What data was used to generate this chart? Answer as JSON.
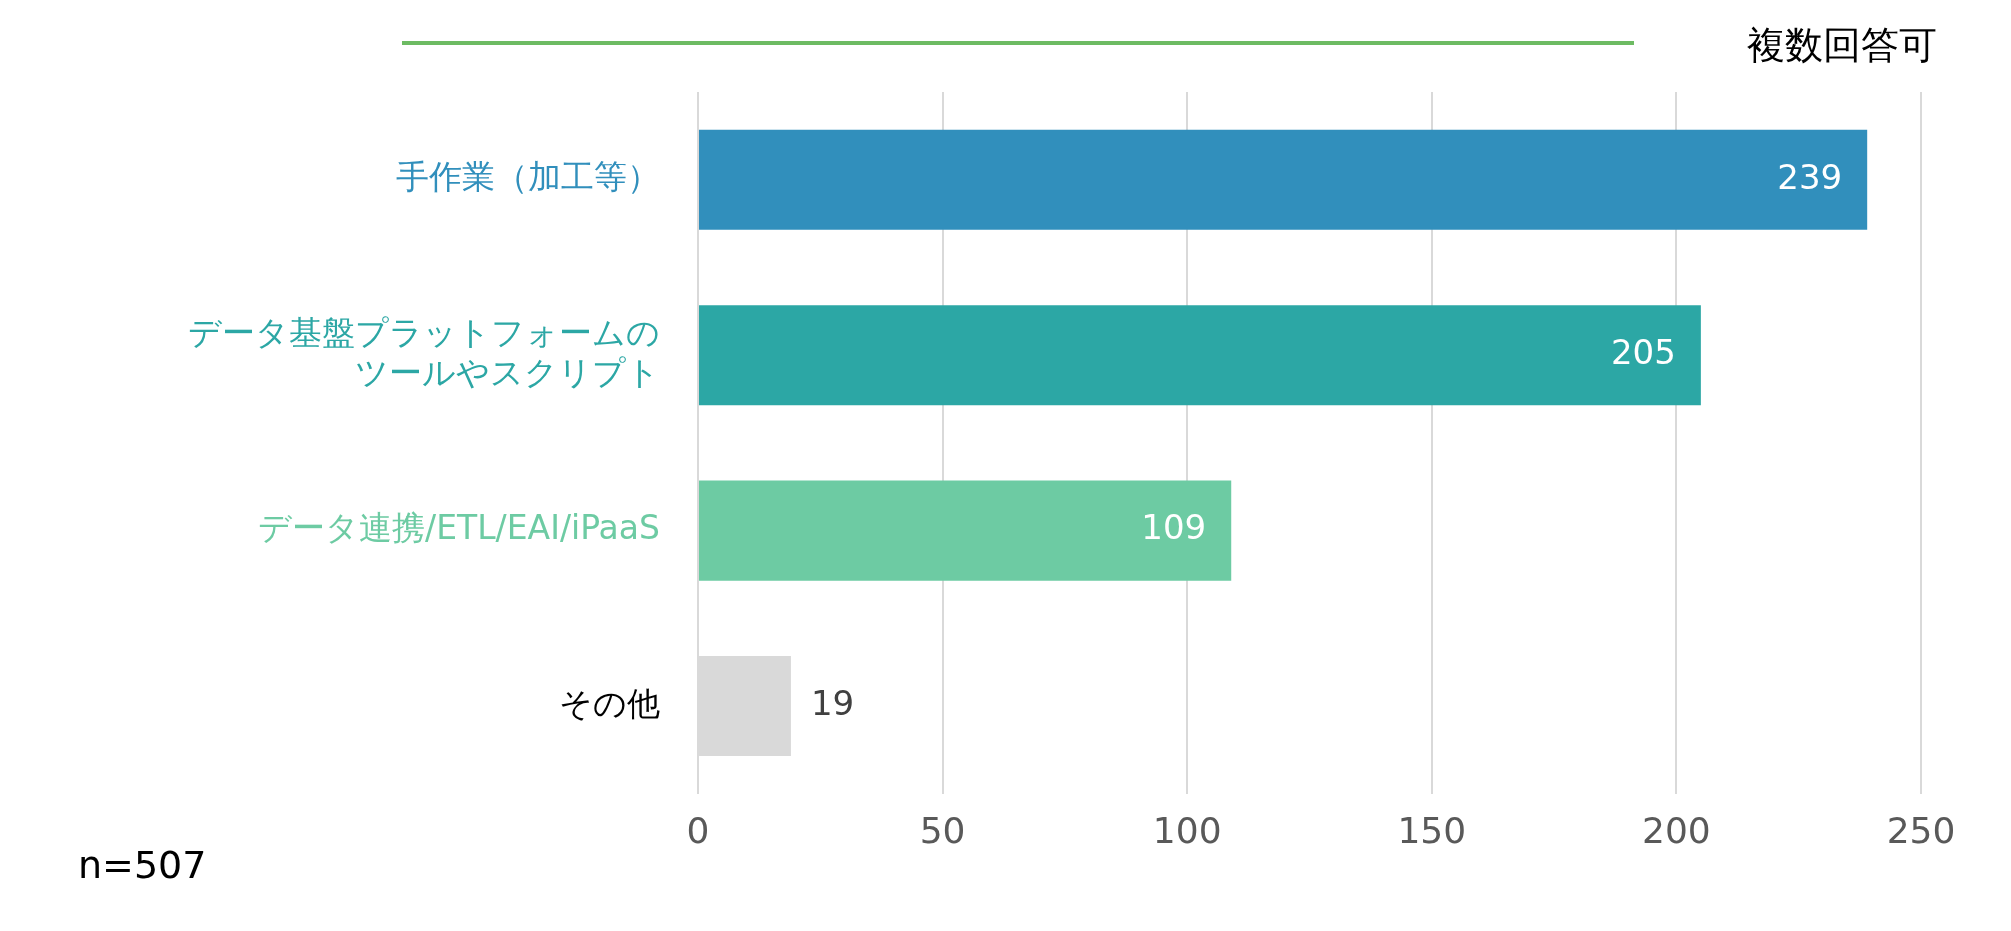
{
  "chart_data": {
    "type": "bar",
    "orientation": "horizontal",
    "categories": [
      "手作業（加工等）",
      "データ基盤プラットフォームのツールやスクリプト",
      "データ連携/ETL/EAI/iPaaS",
      "その他"
    ],
    "values": [
      239,
      205,
      109,
      19
    ],
    "colors": [
      "#318fbc",
      "#2ca7a5",
      "#6dcba3",
      "#d9d9d9"
    ],
    "xlim": [
      0,
      250
    ],
    "xticks": [
      0,
      50,
      100,
      150,
      200,
      250
    ],
    "grid": "x",
    "data_labels": true,
    "legend": false,
    "annotations": [
      "複数回答可",
      "n=507"
    ]
  }
}
